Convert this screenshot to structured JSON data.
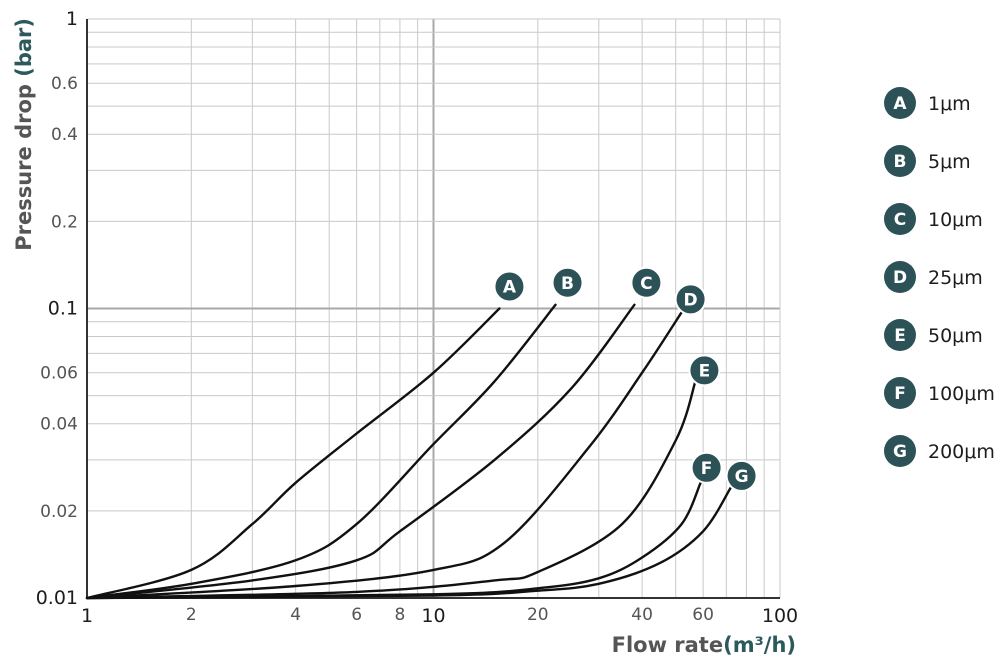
{
  "colors": {
    "badge": "#2c5257",
    "curve": "#111111",
    "grid": "#c9c9c9",
    "grid_major": "#a8a8a8",
    "axis_unit": "#2c5a5c"
  },
  "chart_data": {
    "type": "line",
    "x_scale": "log",
    "y_scale": "log",
    "xlim": [
      1,
      100
    ],
    "ylim": [
      0.01,
      1
    ],
    "grid": true,
    "legend_position": "right",
    "x_ticks": [
      "1",
      "2",
      "4",
      "6",
      "8",
      "10",
      "20",
      "40",
      "60",
      "100"
    ],
    "y_ticks": [
      "1",
      "0.6",
      "0.4",
      "0.2",
      "0.1",
      "0.06",
      "0.04",
      "0.02",
      "0.01"
    ],
    "xlabel": {
      "text": "Flow rate",
      "unit": "(m³/h)"
    },
    "ylabel": {
      "text": "Pressure drop ",
      "unit": "(bar)"
    },
    "series": [
      {
        "badge": "A",
        "name": "1μm",
        "x": [
          1,
          2,
          3,
          4,
          6,
          10,
          15.5
        ],
        "y": [
          0.01,
          0.0125,
          0.018,
          0.025,
          0.037,
          0.06,
          0.1
        ]
      },
      {
        "badge": "B",
        "name": "5μm",
        "x": [
          1,
          2,
          4,
          6,
          10,
          15,
          22.5
        ],
        "y": [
          0.01,
          0.0112,
          0.0135,
          0.018,
          0.034,
          0.056,
          0.103
        ]
      },
      {
        "badge": "C",
        "name": "10μm",
        "x": [
          1,
          3,
          6,
          8,
          15,
          25,
          38
        ],
        "y": [
          0.01,
          0.0115,
          0.0135,
          0.017,
          0.03,
          0.053,
          0.103
        ]
      },
      {
        "badge": "D",
        "name": "25μm",
        "x": [
          1,
          4,
          10,
          16,
          28,
          40,
          52
        ],
        "y": [
          0.01,
          0.011,
          0.0125,
          0.0155,
          0.033,
          0.06,
          0.097
        ]
      },
      {
        "badge": "E",
        "name": "50μm",
        "x": [
          1,
          6,
          15,
          20,
          35,
          50,
          57
        ],
        "y": [
          0.01,
          0.0105,
          0.0115,
          0.0123,
          0.018,
          0.035,
          0.056
        ]
      },
      {
        "badge": "F",
        "name": "100μm",
        "x": [
          1,
          10,
          20,
          30,
          40,
          52,
          59
        ],
        "y": [
          0.01,
          0.0103,
          0.0108,
          0.0117,
          0.0138,
          0.018,
          0.025
        ]
      },
      {
        "badge": "G",
        "name": "200μm",
        "x": [
          1,
          10,
          20,
          30,
          45,
          60,
          72
        ],
        "y": [
          0.01,
          0.0102,
          0.0106,
          0.0112,
          0.0132,
          0.017,
          0.024
        ]
      }
    ]
  }
}
